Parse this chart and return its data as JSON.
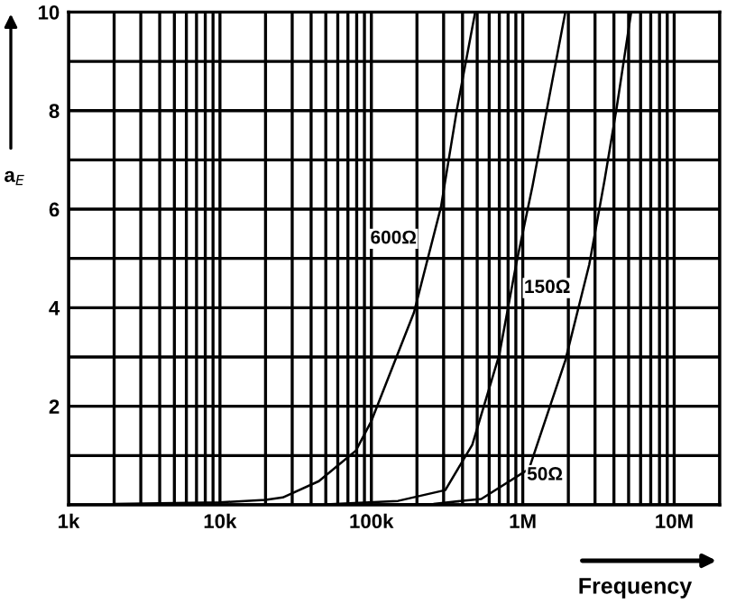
{
  "chart_data": {
    "type": "line",
    "xlabel": "Frequency",
    "ylabel": "a$_{E}$",
    "log": "x",
    "xlim": [
      1000,
      20000000
    ],
    "ylim": [
      0,
      10
    ],
    "xticks": [
      {
        "value": 1000,
        "label": "1k"
      },
      {
        "value": 2000,
        "label": null
      },
      {
        "value": 3000,
        "label": null
      },
      {
        "value": 4000,
        "label": null
      },
      {
        "value": 5000,
        "label": null
      },
      {
        "value": 6000,
        "label": null
      },
      {
        "value": 7000,
        "label": null
      },
      {
        "value": 8000,
        "label": null
      },
      {
        "value": 9000,
        "label": null
      },
      {
        "value": 10000,
        "label": "10k"
      },
      {
        "value": 20000,
        "label": null
      },
      {
        "value": 30000,
        "label": null
      },
      {
        "value": 40000,
        "label": null
      },
      {
        "value": 50000,
        "label": null
      },
      {
        "value": 60000,
        "label": null
      },
      {
        "value": 70000,
        "label": null
      },
      {
        "value": 80000,
        "label": null
      },
      {
        "value": 90000,
        "label": null
      },
      {
        "value": 100000,
        "label": "100k"
      },
      {
        "value": 200000,
        "label": null
      },
      {
        "value": 300000,
        "label": null
      },
      {
        "value": 400000,
        "label": null
      },
      {
        "value": 500000,
        "label": null
      },
      {
        "value": 600000,
        "label": null
      },
      {
        "value": 700000,
        "label": null
      },
      {
        "value": 800000,
        "label": null
      },
      {
        "value": 900000,
        "label": null
      },
      {
        "value": 1000000,
        "label": "1M"
      },
      {
        "value": 2000000,
        "label": null
      },
      {
        "value": 3000000,
        "label": null
      },
      {
        "value": 4000000,
        "label": null
      },
      {
        "value": 5000000,
        "label": null
      },
      {
        "value": 6000000,
        "label": null
      },
      {
        "value": 7000000,
        "label": null
      },
      {
        "value": 8000000,
        "label": null
      },
      {
        "value": 9000000,
        "label": null
      },
      {
        "value": 10000000,
        "label": "10M"
      },
      {
        "value": 20000000,
        "label": null
      }
    ],
    "yticks": [
      {
        "value": 0,
        "label": null
      },
      {
        "value": 1,
        "label": null
      },
      2,
      {
        "value": 3,
        "label": null
      },
      4,
      {
        "value": 5,
        "label": null
      },
      6,
      {
        "value": 7,
        "label": null
      },
      8,
      {
        "value": 9,
        "label": null
      },
      10
    ],
    "grid": true,
    "marker": "none",
    "line_style": "solid",
    "series": [
      {
        "color": "#000000",
        "x": [
          2000,
          10000,
          20000,
          26000,
          45000,
          79000,
          100000,
          191000,
          288000,
          369000,
          485000
        ],
        "values": [
          0.02,
          0.05,
          0.1,
          0.15,
          0.48,
          1.1,
          1.7,
          3.9,
          6.04,
          8.06,
          10
        ]
      },
      {
        "color": "#000000",
        "x": [
          50000,
          150000,
          308000,
          464000,
          700000,
          904000,
          1160000,
          1450000,
          1910000
        ],
        "values": [
          0.01,
          0.08,
          0.3,
          1.22,
          3.05,
          4.88,
          6.47,
          8.06,
          10
        ]
      },
      {
        "color": "#000000",
        "x": [
          100000,
          257000,
          532000,
          1100000,
          1910000,
          2750000,
          3470000,
          4170000,
          5200000
        ],
        "values": [
          0,
          0.02,
          0.12,
          0.73,
          2.93,
          4.88,
          6.59,
          8.06,
          10
        ]
      }
    ],
    "annotations": [
      {
        "text": "600Ω",
        "x": 140000,
        "y": 5.4
      },
      {
        "text": "150Ω",
        "x": 1450000,
        "y": 4.4
      },
      {
        "text": "50Ω",
        "x": 1400000,
        "y": 0.6
      }
    ]
  }
}
